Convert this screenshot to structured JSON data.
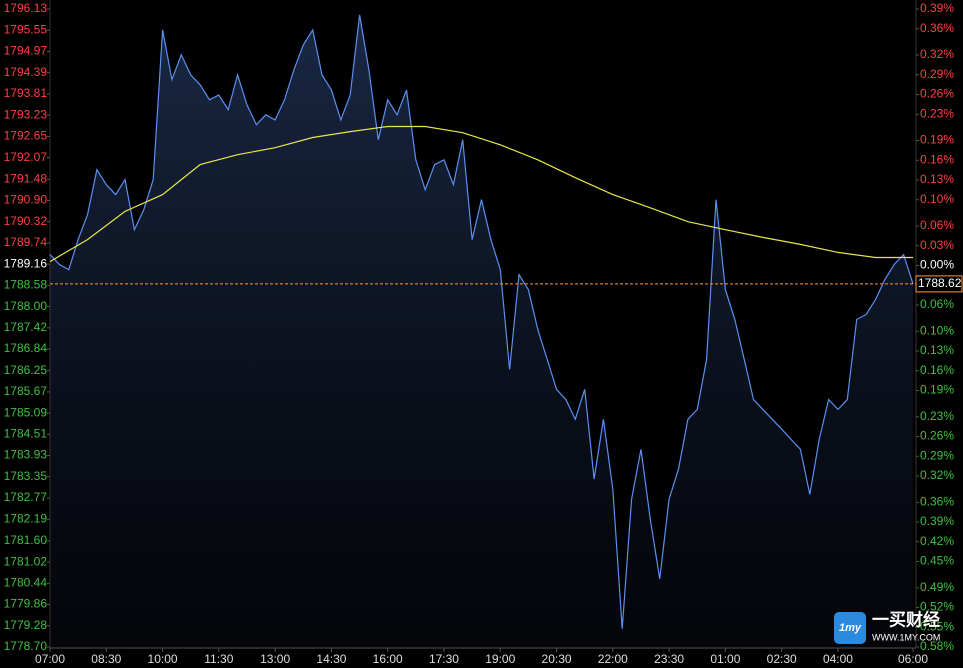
{
  "chart_data": {
    "type": "line",
    "xlim": [
      0,
      1380
    ],
    "xticks": [
      {
        "value": 0,
        "label": "07:00"
      },
      {
        "value": 90,
        "label": "08:30"
      },
      {
        "value": 180,
        "label": "10:00"
      },
      {
        "value": 270,
        "label": "11:30"
      },
      {
        "value": 360,
        "label": "13:00"
      },
      {
        "value": 450,
        "label": "14:30"
      },
      {
        "value": 540,
        "label": "16:00"
      },
      {
        "value": 630,
        "label": "17:30"
      },
      {
        "value": 720,
        "label": "19:00"
      },
      {
        "value": 810,
        "label": "20:30"
      },
      {
        "value": 900,
        "label": "22:00"
      },
      {
        "value": 990,
        "label": "23:30"
      },
      {
        "value": 1080,
        "label": "01:00"
      },
      {
        "value": 1170,
        "label": "02:30"
      },
      {
        "value": 1260,
        "label": "04:00"
      },
      {
        "value": 1380,
        "label": "06:00"
      }
    ],
    "ylim": [
      1778.7,
      1796.13
    ],
    "yticks": [
      1796.13,
      1795.55,
      1794.97,
      1794.39,
      1793.81,
      1793.23,
      1792.65,
      1792.07,
      1791.48,
      {
        "value": 1790.9,
        "label": "1790.90"
      },
      1790.32,
      1789.74,
      1789.16,
      1788.58,
      {
        "value": 1788,
        "label": "1788.00"
      },
      1787.42,
      1786.84,
      1786.25,
      1785.67,
      1785.09,
      1784.51,
      1783.93,
      1783.35,
      1782.77,
      1782.19,
      {
        "value": 1781.6,
        "label": "1781.60"
      },
      1781.02,
      1780.44,
      1779.86,
      1779.28,
      {
        "value": 1778.7,
        "label": "1778.70"
      }
    ],
    "y2lim": [
      -0.58,
      0.39
    ],
    "y2ticks": [
      {
        "value": 0.39,
        "label": "0.39%"
      },
      {
        "value": 0.36,
        "label": "0.36%"
      },
      {
        "value": 0.32,
        "label": "0.32%"
      },
      {
        "value": 0.29,
        "label": "0.29%"
      },
      {
        "value": 0.26,
        "label": "0.26%"
      },
      {
        "value": 0.23,
        "label": "0.23%"
      },
      {
        "value": 0.19,
        "label": "0.19%"
      },
      {
        "value": 0.16,
        "label": "0.16%"
      },
      {
        "value": 0.13,
        "label": "0.13%"
      },
      {
        "value": 0.1,
        "label": "0.10%"
      },
      {
        "value": 0.06,
        "label": "0.06%"
      },
      {
        "value": 0.03,
        "label": "0.03%"
      },
      {
        "value": 0,
        "label": "0.00%"
      },
      {
        "value": -0.03,
        "label": "0.03%"
      },
      {
        "value": -0.06,
        "label": "0.06%"
      },
      {
        "value": -0.1,
        "label": "0.10%"
      },
      {
        "value": -0.13,
        "label": "0.13%"
      },
      {
        "value": -0.16,
        "label": "0.16%"
      },
      {
        "value": -0.19,
        "label": "0.19%"
      },
      {
        "value": -0.23,
        "label": "0.23%"
      },
      {
        "value": -0.26,
        "label": "0.26%"
      },
      {
        "value": -0.29,
        "label": "0.29%"
      },
      {
        "value": -0.32,
        "label": "0.32%"
      },
      {
        "value": -0.36,
        "label": "0.36%"
      },
      {
        "value": -0.39,
        "label": "0.39%"
      },
      {
        "value": -0.42,
        "label": "0.42%"
      },
      {
        "value": -0.45,
        "label": "0.45%"
      },
      {
        "value": -0.49,
        "label": "0.49%"
      },
      {
        "value": -0.52,
        "label": "0.52%"
      },
      {
        "value": -0.55,
        "label": "0.55%"
      },
      {
        "value": -0.58,
        "label": "0.58%"
      }
    ],
    "up_color": "#ff4040",
    "down_color": "#40c040",
    "flat_color": "#ffffff",
    "grid": false,
    "series": [
      {
        "color": "#5b8ff0",
        "fill": true,
        "x": [
          0,
          15,
          30,
          45,
          60,
          75,
          90,
          105,
          120,
          135,
          150,
          165,
          180,
          195,
          210,
          225,
          240,
          255,
          270,
          285,
          300,
          315,
          330,
          345,
          360,
          375,
          390,
          405,
          420,
          435,
          450,
          465,
          480,
          495,
          510,
          525,
          540,
          555,
          570,
          585,
          600,
          615,
          630,
          645,
          660,
          675,
          690,
          705,
          720,
          735,
          750,
          765,
          780,
          795,
          810,
          825,
          840,
          855,
          870,
          885,
          900,
          915,
          930,
          945,
          960,
          975,
          990,
          1005,
          1020,
          1035,
          1050,
          1065,
          1080,
          1095,
          1110,
          1125,
          1140,
          1155,
          1170,
          1185,
          1200,
          1215,
          1230,
          1245,
          1260,
          1275,
          1290,
          1305,
          1320,
          1335,
          1350,
          1365,
          1380
        ],
        "values": [
          1789.42,
          1789.15,
          1789.01,
          1789.83,
          1790.51,
          1791.74,
          1791.33,
          1791.06,
          1791.47,
          1790.1,
          1790.65,
          1791.47,
          1795.56,
          1794.2,
          1794.88,
          1794.33,
          1794.06,
          1793.65,
          1793.78,
          1793.38,
          1794.33,
          1793.51,
          1792.97,
          1793.24,
          1793.1,
          1793.65,
          1794.47,
          1795.15,
          1795.56,
          1794.33,
          1793.92,
          1793.1,
          1793.78,
          1795.97,
          1794.47,
          1792.56,
          1793.65,
          1793.24,
          1793.92,
          1792.01,
          1791.19,
          1791.88,
          1792.01,
          1791.33,
          1792.56,
          1789.83,
          1790.92,
          1789.83,
          1789.01,
          1786.28,
          1788.87,
          1788.46,
          1787.37,
          1786.56,
          1785.74,
          1785.46,
          1784.92,
          1785.74,
          1783.29,
          1784.92,
          1783.01,
          1779.2,
          1782.74,
          1784.1,
          1782.19,
          1780.56,
          1782.74,
          1783.56,
          1784.92,
          1785.19,
          1786.56,
          1790.92,
          1788.46,
          1787.65,
          1786.56,
          1785.46,
          1785.19,
          1784.92,
          1784.65,
          1784.37,
          1784.1,
          1782.87,
          1784.37,
          1785.46,
          1785.19,
          1785.46,
          1787.65,
          1787.78,
          1788.19,
          1788.74,
          1789.15,
          1789.42,
          1788.62
        ]
      },
      {
        "color": "#e6e64a",
        "fill": false,
        "x": [
          0,
          60,
          120,
          180,
          240,
          300,
          360,
          420,
          480,
          540,
          600,
          660,
          720,
          780,
          840,
          900,
          960,
          1020,
          1080,
          1140,
          1200,
          1260,
          1320,
          1380
        ],
        "values": [
          1789.23,
          1789.83,
          1790.6,
          1791.06,
          1791.88,
          1792.15,
          1792.34,
          1792.62,
          1792.78,
          1792.92,
          1792.92,
          1792.75,
          1792.42,
          1792.01,
          1791.52,
          1791.06,
          1790.7,
          1790.32,
          1790.1,
          1789.89,
          1789.7,
          1789.48,
          1789.34,
          1789.34
        ]
      }
    ],
    "last_price": 1788.62,
    "last_price_color": "#ff9a3c",
    "watermark": {
      "icon": "1my",
      "name": "一买财经",
      "url": "WWW.1MY.COM"
    }
  }
}
